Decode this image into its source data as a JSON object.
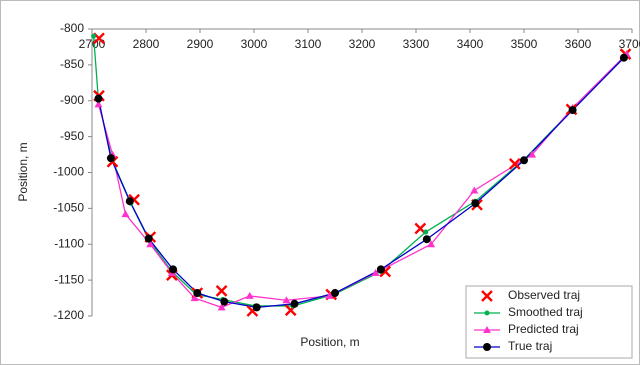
{
  "chart_data": {
    "type": "line",
    "x_label": "Position, m",
    "y_label": "Position, m",
    "xlim": [
      2700,
      3700
    ],
    "xticks": [
      2700,
      2800,
      2900,
      3000,
      3100,
      3200,
      3300,
      3400,
      3500,
      3600,
      3700
    ],
    "ylim": [
      -1200,
      -800
    ],
    "yticks": [
      -1200,
      -1150,
      -1100,
      -1050,
      -1000,
      -950,
      -900,
      -850,
      -800
    ],
    "x_axis_position": "top",
    "legend": "lower right",
    "series": [
      {
        "name": "Observed traj",
        "color": "#ff0000",
        "marker": "x",
        "line": false,
        "x": [
          2713,
          2713,
          2738,
          2778,
          2808,
          2848,
          2895,
          2940,
          2997,
          3068,
          3143,
          3243,
          3308,
          3413,
          3483,
          3588,
          3688
        ],
        "values": [
          -813,
          -893,
          -985,
          -1038,
          -1090,
          -1143,
          -1168,
          -1165,
          -1193,
          -1192,
          -1170,
          -1138,
          -1078,
          -1045,
          -988,
          -912,
          -835
        ]
      },
      {
        "name": "Smoothed traj",
        "color": "#00b050",
        "marker": "dot",
        "line": true,
        "x": [
          2703,
          2712,
          2737,
          2772,
          2806,
          2848,
          2893,
          2942,
          3002,
          3072,
          3148,
          3235,
          3318,
          3410,
          3500,
          3590,
          3688
        ],
        "values": [
          -810,
          -900,
          -982,
          -1043,
          -1095,
          -1138,
          -1170,
          -1177,
          -1186,
          -1186,
          -1170,
          -1138,
          -1083,
          -1040,
          -982,
          -912,
          -838
        ]
      },
      {
        "name": "Predicted traj",
        "color": "#ff33cc",
        "marker": "triangle",
        "line": true,
        "x": [
          2712,
          2738,
          2762,
          2808,
          2848,
          2890,
          2940,
          2992,
          3060,
          3140,
          3225,
          3328,
          3408,
          3515,
          3590,
          3690
        ],
        "values": [
          -905,
          -975,
          -1058,
          -1100,
          -1140,
          -1175,
          -1188,
          -1172,
          -1178,
          -1172,
          -1140,
          -1100,
          -1025,
          -975,
          -910,
          -835
        ]
      },
      {
        "name": "True traj",
        "color": "#0000cc",
        "marker_color": "#000000",
        "marker": "circle",
        "line": true,
        "x": [
          2712,
          2735,
          2770,
          2805,
          2850,
          2895,
          2945,
          3005,
          3075,
          3150,
          3235,
          3320,
          3410,
          3500,
          3590,
          3685
        ],
        "values": [
          -897,
          -980,
          -1040,
          -1092,
          -1135,
          -1168,
          -1180,
          -1188,
          -1183,
          -1168,
          -1135,
          -1093,
          -1043,
          -983,
          -913,
          -840
        ]
      }
    ]
  }
}
